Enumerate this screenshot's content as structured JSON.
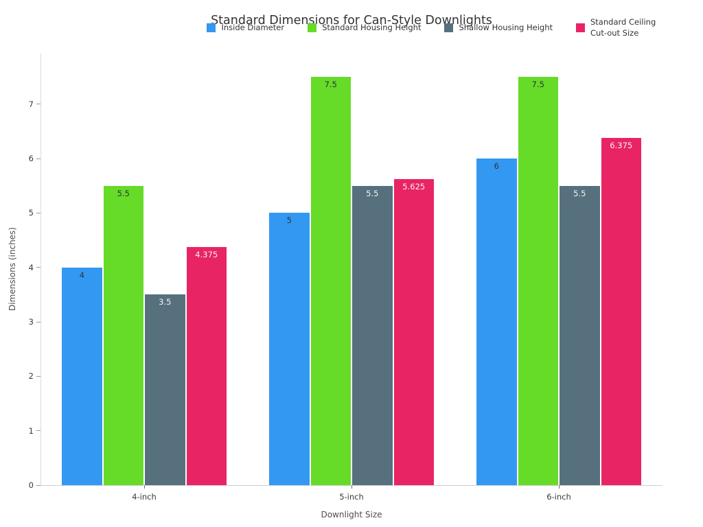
{
  "chart_data": {
    "type": "bar",
    "title": "Standard Dimensions for Can-Style Downlights",
    "xlabel": "Downlight Size",
    "ylabel": "Dimensions (inches)",
    "categories": [
      "4-inch",
      "5-inch",
      "6-inch"
    ],
    "series": [
      {
        "name": "Inside Diameter",
        "color": "#3398F2",
        "label_text_color": "#2e3338",
        "values": [
          4,
          5,
          6
        ]
      },
      {
        "name": "Standard Housing Height",
        "color": "#66DB28",
        "label_text_color": "#2e3338",
        "values": [
          5.5,
          7.5,
          7.5
        ]
      },
      {
        "name": "Shallow Housing Height",
        "color": "#56707D",
        "label_text_color": "#f5f5f5",
        "values": [
          3.5,
          5.5,
          5.5
        ]
      },
      {
        "name": "Standard Ceiling Cut-out Size",
        "color": "#E92464",
        "label_text_color": "#f5f5f5",
        "values": [
          4.375,
          5.625,
          6.375
        ]
      }
    ],
    "bar_value_labels": [
      "4",
      "5.5",
      "3.5",
      "4.375",
      "5",
      "7.5",
      "5.5",
      "5.625",
      "6",
      "7.5",
      "5.5",
      "6.375"
    ],
    "yticks": [
      0,
      1,
      2,
      3,
      4,
      5,
      6,
      7
    ],
    "ylim": [
      0,
      7.93
    ],
    "grid": false,
    "legend_position": "top"
  }
}
